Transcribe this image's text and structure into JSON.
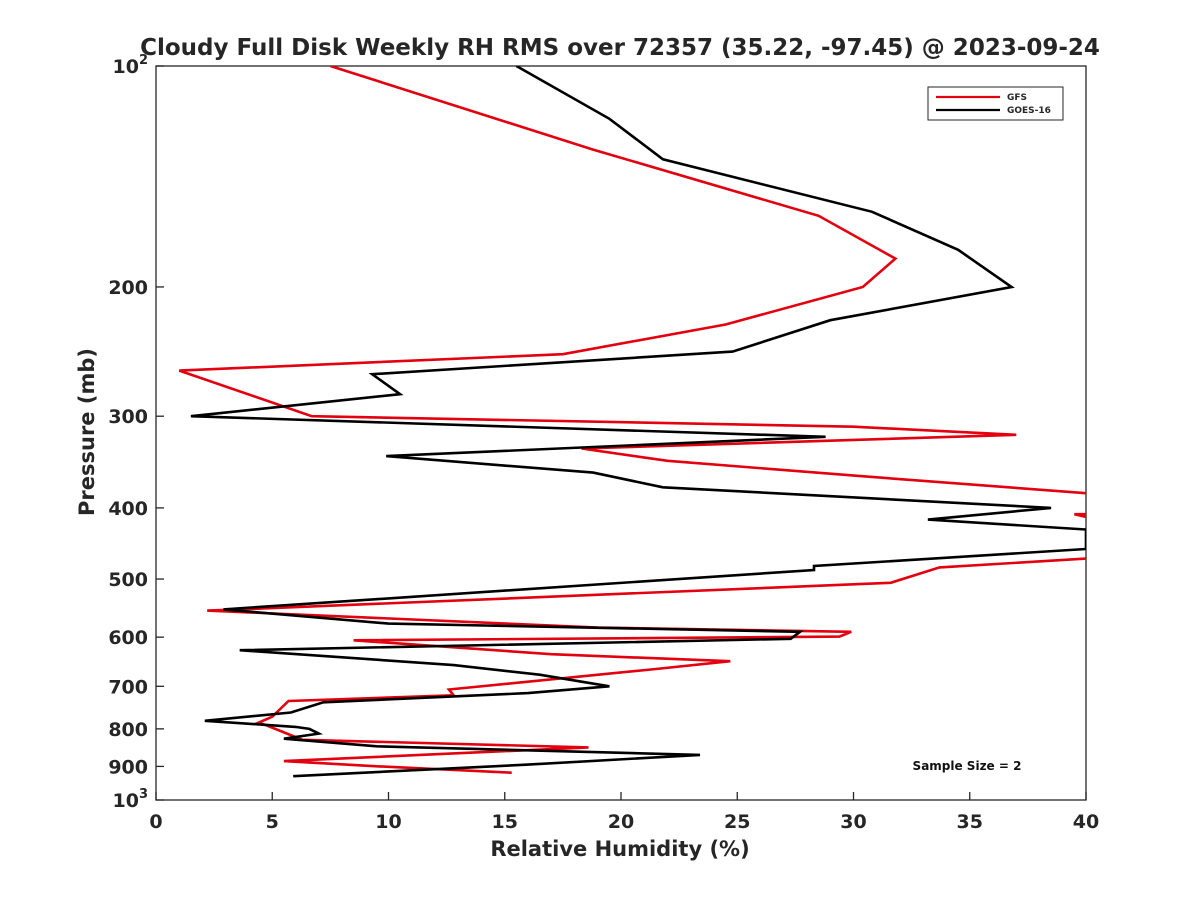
{
  "chart_data": {
    "type": "line",
    "title": "Cloudy Full Disk Weekly RH RMS over 72357 (35.22, -97.45) @ 2023-09-24",
    "xlabel": "Relative Humidity (%)",
    "ylabel": "Pressure (mb)",
    "xlim": [
      0,
      40
    ],
    "ylim": [
      100,
      1000
    ],
    "yscale": "log",
    "y_reversed": true,
    "grid": false,
    "legend_position": "top-right",
    "x_ticks": [
      "0",
      "5",
      "10",
      "15",
      "20",
      "25",
      "30",
      "35",
      "40"
    ],
    "y_ticks": [
      {
        "value": 100,
        "base": "10",
        "exp": "2"
      },
      {
        "value": 200,
        "label": "200"
      },
      {
        "value": 300,
        "label": "300"
      },
      {
        "value": 400,
        "label": "400"
      },
      {
        "value": 500,
        "label": "500"
      },
      {
        "value": 600,
        "label": "600"
      },
      {
        "value": 700,
        "label": "700"
      },
      {
        "value": 800,
        "label": "800"
      },
      {
        "value": 900,
        "label": "900"
      },
      {
        "value": 1000,
        "base": "10",
        "exp": "3"
      }
    ],
    "annotation": "Sample Size = 2",
    "series": [
      {
        "name": "GFS",
        "color": "#e3000f",
        "points": [
          [
            7.5,
            100
          ],
          [
            18.8,
            130
          ],
          [
            28.5,
            160
          ],
          [
            31.8,
            183
          ],
          [
            30.4,
            200
          ],
          [
            24.5,
            225
          ],
          [
            17.5,
            247
          ],
          [
            1.0,
            260
          ],
          [
            6.7,
            300
          ],
          [
            30.0,
            310
          ],
          [
            37.0,
            318
          ],
          [
            18.3,
            332
          ],
          [
            22.0,
            345
          ],
          [
            30.3,
            362
          ],
          [
            40.0,
            382
          ],
          [
            40.3,
            408
          ],
          [
            39.5,
            408
          ],
          [
            40.5,
            415
          ],
          [
            40.0,
            469
          ],
          [
            33.7,
            482
          ],
          [
            31.6,
            506
          ],
          [
            3.6,
            550
          ],
          [
            2.2,
            552
          ],
          [
            19.0,
            582
          ],
          [
            29.9,
            590
          ],
          [
            29.4,
            599
          ],
          [
            8.5,
            606
          ],
          [
            17.0,
            633
          ],
          [
            24.7,
            647
          ],
          [
            21.5,
            663
          ],
          [
            12.6,
            707
          ],
          [
            12.8,
            720
          ],
          [
            5.7,
            733
          ],
          [
            5.0,
            770
          ],
          [
            4.4,
            785
          ],
          [
            4.7,
            790
          ],
          [
            6.3,
            828
          ],
          [
            18.6,
            848
          ],
          [
            5.5,
            885
          ],
          [
            9.6,
            900
          ],
          [
            15.3,
            918
          ]
        ]
      },
      {
        "name": "GOES-16",
        "color": "#000000",
        "points": [
          [
            15.5,
            100
          ],
          [
            19.5,
            118
          ],
          [
            21.8,
            134
          ],
          [
            30.8,
            158
          ],
          [
            34.5,
            178
          ],
          [
            36.8,
            200
          ],
          [
            29.0,
            222
          ],
          [
            24.8,
            245
          ],
          [
            9.3,
            263
          ],
          [
            10.5,
            280
          ],
          [
            1.5,
            300
          ],
          [
            28.8,
            320
          ],
          [
            9.9,
            340
          ],
          [
            18.8,
            358
          ],
          [
            21.8,
            375
          ],
          [
            38.5,
            400
          ],
          [
            33.2,
            415
          ],
          [
            40.0,
            428
          ],
          [
            40.0,
            455
          ],
          [
            28.3,
            480
          ],
          [
            28.3,
            486
          ],
          [
            2.9,
            550
          ],
          [
            10.0,
            575
          ],
          [
            27.7,
            590
          ],
          [
            27.3,
            603
          ],
          [
            3.6,
            625
          ],
          [
            12.8,
            655
          ],
          [
            16.5,
            675
          ],
          [
            19.5,
            700
          ],
          [
            16.0,
            715
          ],
          [
            7.2,
            736
          ],
          [
            5.8,
            760
          ],
          [
            2.1,
            780
          ],
          [
            6.0,
            795
          ],
          [
            6.6,
            800
          ],
          [
            7.0,
            812
          ],
          [
            5.5,
            825
          ],
          [
            9.5,
            845
          ],
          [
            23.4,
            868
          ],
          [
            16.0,
            895
          ],
          [
            5.9,
            928
          ]
        ]
      }
    ]
  }
}
